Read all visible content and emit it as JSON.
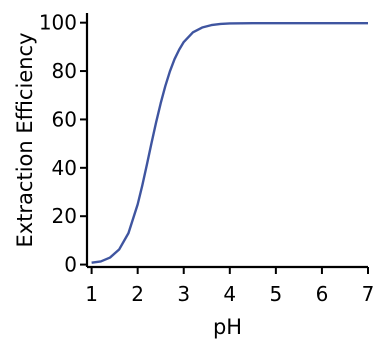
{
  "chart_data": {
    "type": "line",
    "title": "",
    "xlabel": "pH",
    "ylabel": "Extraction Efficiency",
    "xlim": [
      0.9,
      7.0
    ],
    "ylim": [
      -1,
      104
    ],
    "xticks": [
      1,
      2,
      3,
      4,
      5,
      6,
      7
    ],
    "yticks": [
      0,
      20,
      40,
      60,
      80,
      100
    ],
    "grid": false,
    "legend": "none",
    "series": [
      {
        "color": "#3f55a0",
        "x": [
          1.0,
          1.2,
          1.4,
          1.6,
          1.8,
          2.0,
          2.1,
          2.2,
          2.3,
          2.4,
          2.5,
          2.6,
          2.7,
          2.8,
          2.9,
          3.0,
          3.2,
          3.4,
          3.6,
          3.8,
          4.0,
          4.5,
          5.0,
          5.5,
          6.0,
          6.5,
          7.0
        ],
        "y": [
          0.8,
          1.3,
          2.9,
          6.3,
          13,
          24.9,
          32.7,
          41.3,
          50.2,
          58.8,
          66.7,
          73.8,
          79.9,
          84.9,
          88.8,
          92,
          96,
          98,
          99,
          99.5,
          99.7,
          99.8,
          99.8,
          99.8,
          99.8,
          99.8,
          99.8
        ]
      }
    ]
  }
}
